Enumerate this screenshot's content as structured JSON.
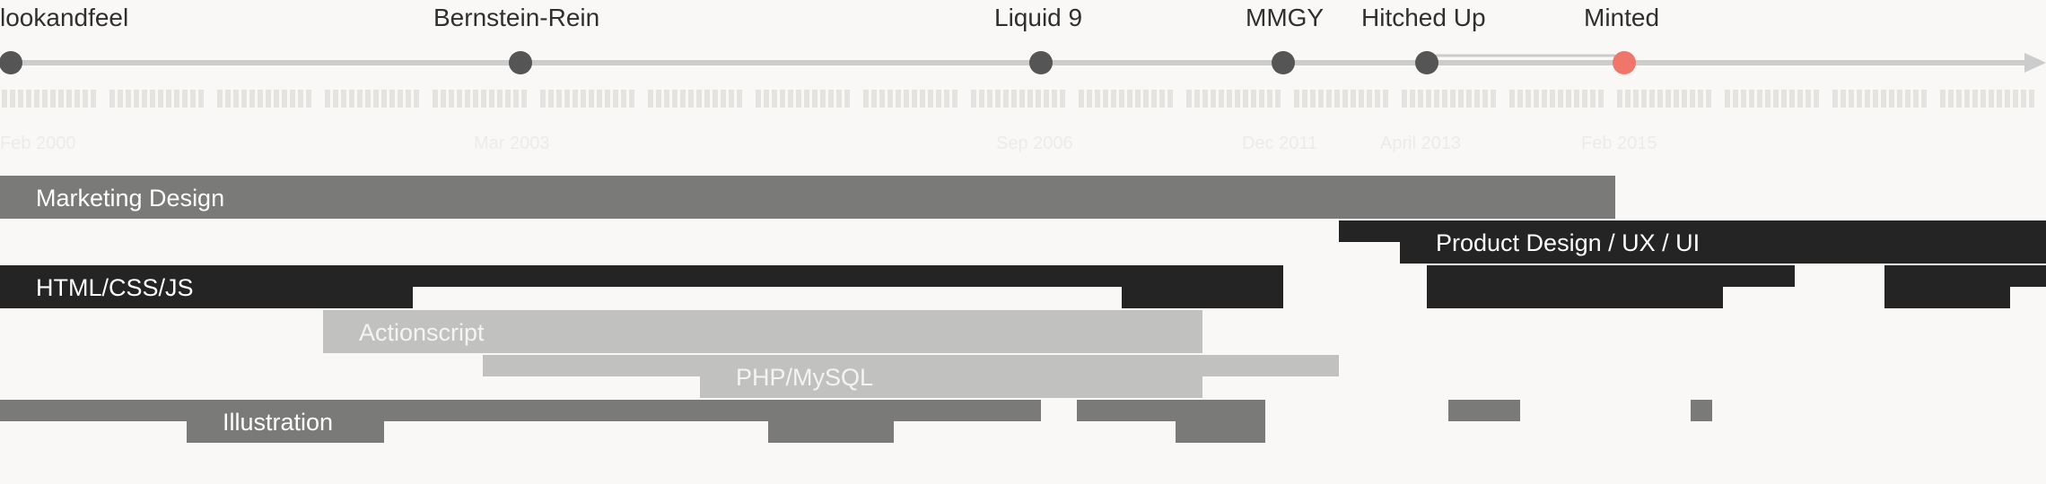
{
  "colors": {
    "background": "#f9f8f6",
    "track": "#cccccc",
    "milestone": "#555555",
    "current_milestone": "#f0766a",
    "dark_skill": "#242424",
    "mid_skill": "#7a7a79",
    "light_skill": "#c1c1c0",
    "tick": "#e4e3e0",
    "year_text": "#ecebe8"
  },
  "companies": [
    {
      "name": "lookandfeel",
      "current": false
    },
    {
      "name": "Bernstein-Rein",
      "current": false
    },
    {
      "name": "Liquid 9",
      "current": false
    },
    {
      "name": "MMGY",
      "current": false
    },
    {
      "name": "Hitched Up",
      "current": false
    },
    {
      "name": "Minted",
      "current": true
    }
  ],
  "year_labels": [
    "Feb 2000",
    "Mar 2003",
    "Sep 2006",
    "Dec 2011",
    "April 2013",
    "Feb 2015"
  ],
  "skills": [
    {
      "label": "Marketing Design",
      "shade": "mid"
    },
    {
      "label": "Product Design / UX / UI",
      "shade": "dark"
    },
    {
      "label": "HTML/CSS/JS",
      "shade": "dark"
    },
    {
      "label": "Actionscript",
      "shade": "light"
    },
    {
      "label": "PHP/MySQL",
      "shade": "light"
    },
    {
      "label": "Illustration",
      "shade": "mid"
    }
  ]
}
